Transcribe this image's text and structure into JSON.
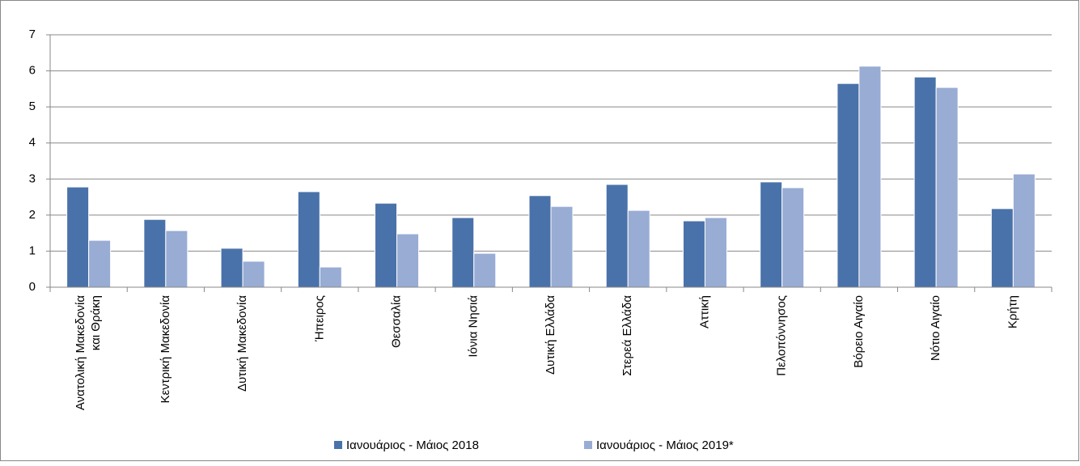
{
  "chart_data": {
    "type": "bar",
    "categories": [
      "Ανατολική Μακεδονία και Θράκη",
      "Κεντρική Μακεδονία",
      "Δυτική Μακεδονία",
      "Ήπειρος",
      "Θεσσαλία",
      "Ιόνια Νησιά",
      "Δυτική Ελλάδα",
      "Στερεά Ελλάδα",
      "Αττική",
      "Πελοπόννησος",
      "Βόρειο Αιγαίο",
      "Νότιο Αιγαίο",
      "Κρήτη"
    ],
    "series": [
      {
        "name": "Ιανουάριος - Μάιος 2018",
        "color": "#4a72aa",
        "values": [
          2.78,
          1.88,
          1.08,
          2.65,
          2.33,
          1.93,
          2.54,
          2.85,
          1.84,
          2.92,
          5.65,
          5.83,
          2.18
        ]
      },
      {
        "name": "Ιανουάριος - Μάιος 2019*",
        "color": "#98acd4",
        "values": [
          1.3,
          1.57,
          0.72,
          0.56,
          1.48,
          0.94,
          2.24,
          2.13,
          1.93,
          2.76,
          6.13,
          5.54,
          3.14
        ]
      }
    ],
    "ylim": [
      0,
      7
    ],
    "yticks": [
      0,
      1,
      2,
      3,
      4,
      5,
      6,
      7
    ],
    "grid": true,
    "legend": "bottom"
  }
}
